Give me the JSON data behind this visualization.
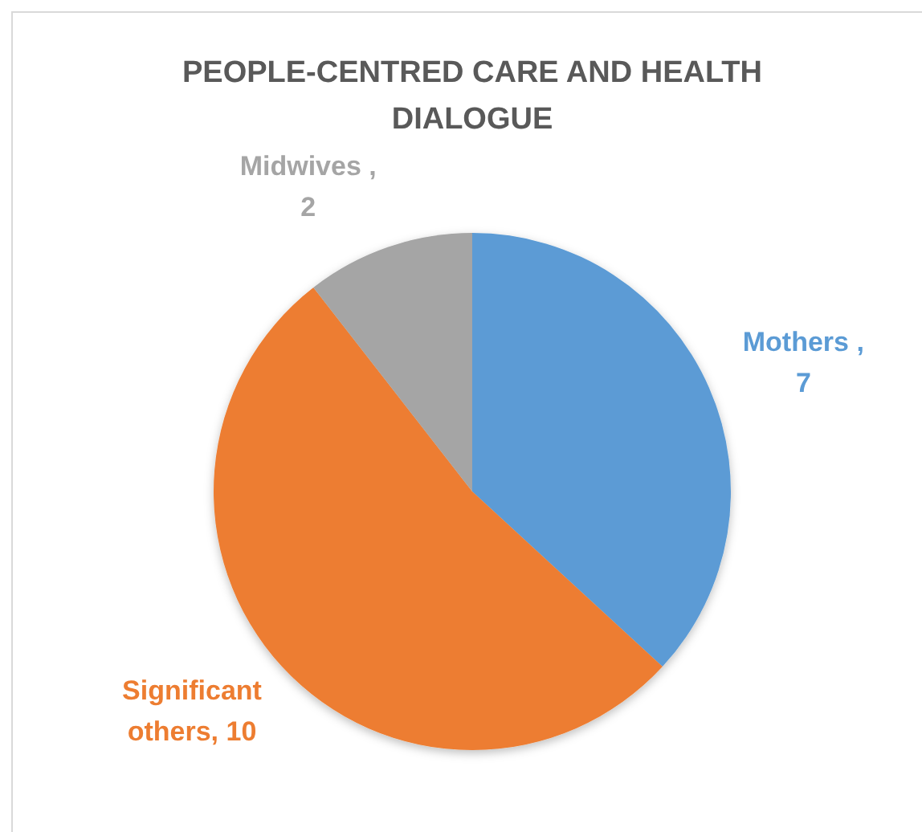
{
  "chart_data": {
    "type": "pie",
    "title": "PEOPLE-CENTRED CARE AND HEALTH DIALOGUE",
    "categories": [
      null,
      null,
      null
    ],
    "values": [
      7,
      10,
      2
    ],
    "value_labels": [
      "Mothers , 7",
      "Significant others, 10",
      "Midwives , 2"
    ],
    "colors": [
      "#5b9bd5",
      "#ed7d31",
      "#a5a5a5"
    ]
  }
}
